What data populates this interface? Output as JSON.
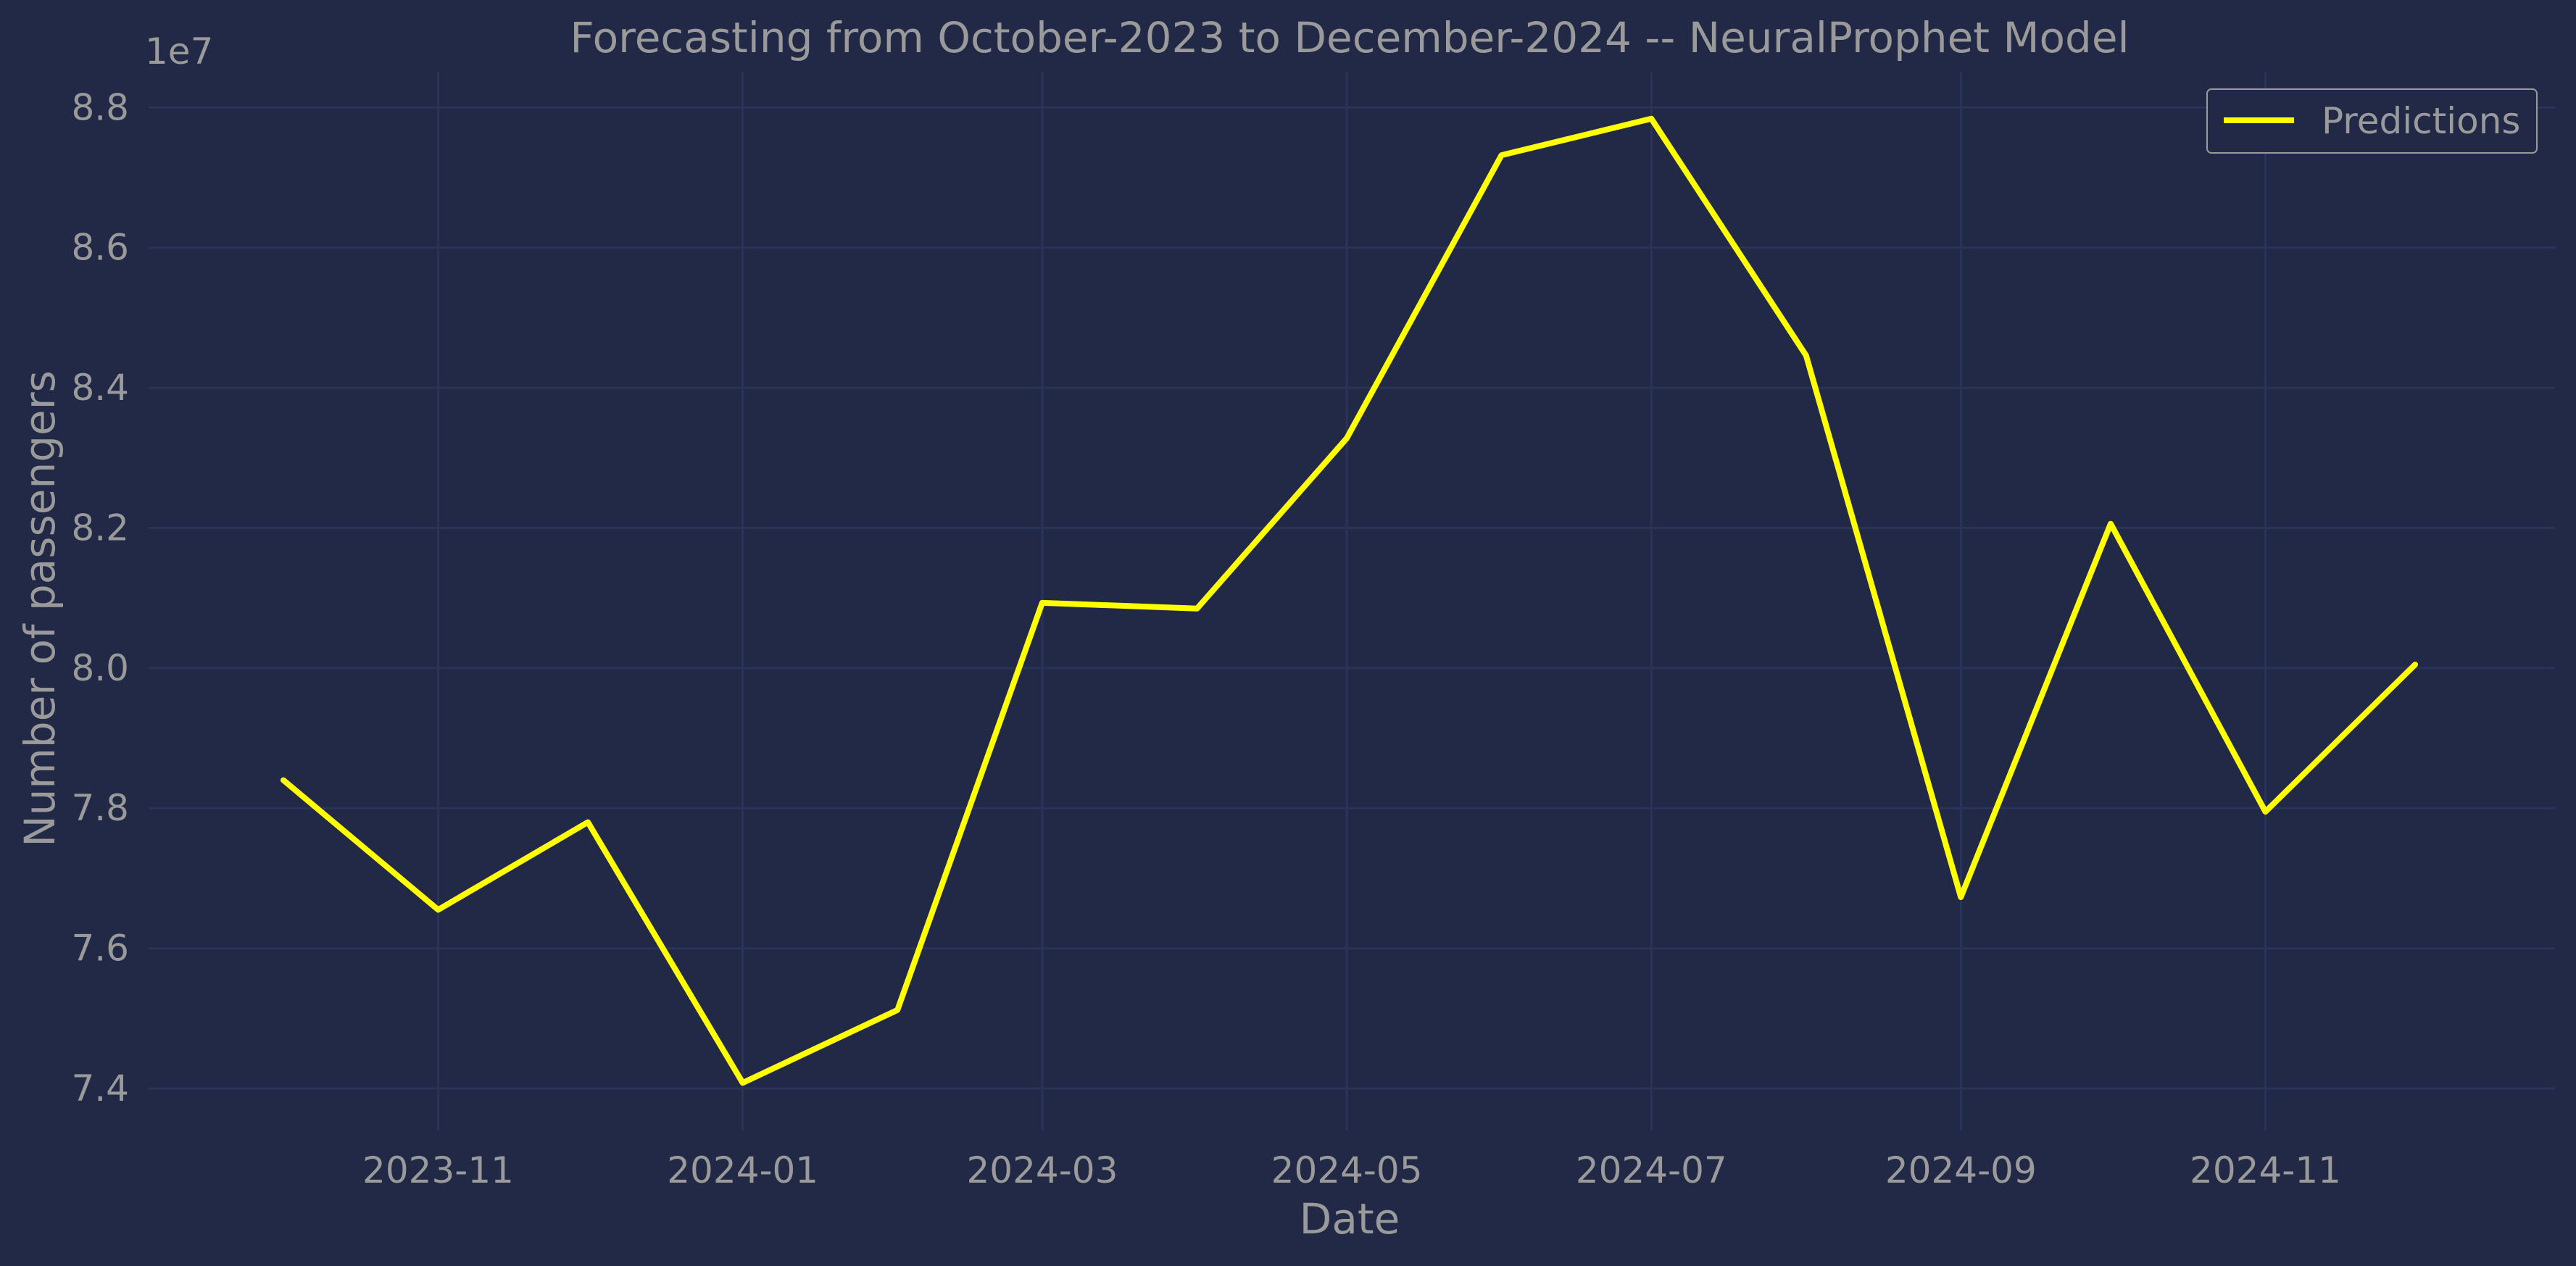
{
  "chart_data": {
    "type": "line",
    "title": "Forecasting from October-2023 to December-2024 -- NeuralProphet Model",
    "xlabel": "Date",
    "ylabel": "Number of passengers",
    "y_offset_label": "1e7",
    "x": [
      "2023-10-01",
      "2023-11-01",
      "2023-12-01",
      "2024-01-01",
      "2024-02-01",
      "2024-03-01",
      "2024-04-01",
      "2024-05-01",
      "2024-06-01",
      "2024-07-01",
      "2024-08-01",
      "2024-09-01",
      "2024-10-01",
      "2024-11-01",
      "2024-12-01"
    ],
    "series": [
      {
        "name": "Predictions",
        "color": "#FFFF00",
        "values": [
          78400000,
          76550000,
          77800000,
          74080000,
          75120000,
          80930000,
          80850000,
          83280000,
          87320000,
          87840000,
          84460000,
          76730000,
          82060000,
          77950000,
          80050000
        ]
      }
    ],
    "xlim": [
      "2023-09-04",
      "2024-12-29"
    ],
    "ylim": [
      73400000,
      88500000
    ],
    "x_ticks": [
      "2023-11",
      "2024-01",
      "2024-03",
      "2024-05",
      "2024-07",
      "2024-09",
      "2024-11"
    ],
    "y_ticks": [
      "7.4",
      "7.6",
      "7.8",
      "8.0",
      "8.2",
      "8.4",
      "8.6",
      "8.8"
    ],
    "y_tick_values": [
      74000000,
      76000000,
      78000000,
      80000000,
      82000000,
      84000000,
      86000000,
      88000000
    ],
    "grid": true,
    "legend": "top-right",
    "colors": {
      "background": "#212946",
      "grid": "#2A3459",
      "text": "#9a9a9a",
      "line": "#FFFF00"
    }
  }
}
